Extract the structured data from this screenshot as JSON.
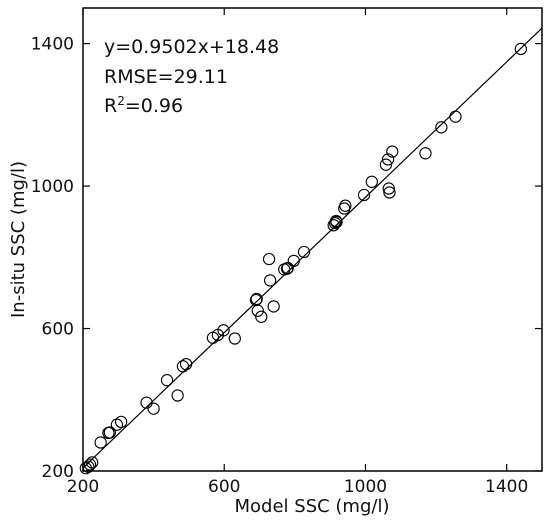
{
  "chart_data": {
    "type": "scatter",
    "xlabel": "Model SSC (mg/l)",
    "ylabel": "In-situ SSC (mg/l)",
    "xlim": [
      200,
      1500
    ],
    "ylim": [
      200,
      1500
    ],
    "xticks": [
      200,
      600,
      1000,
      1400
    ],
    "yticks": [
      200,
      600,
      1000,
      1400
    ],
    "xtick_labels": [
      "200",
      "600",
      "1000",
      "1400"
    ],
    "ytick_labels": [
      "200",
      "600",
      "1000",
      "1400"
    ],
    "grid": false,
    "annotations": [
      {
        "key": "equation",
        "text": "y=0.9502x+18.48"
      },
      {
        "key": "rmse",
        "text": "RMSE=29.11"
      },
      {
        "key": "r2_prefix",
        "text": "R"
      },
      {
        "key": "r2_sup",
        "text": "2"
      },
      {
        "key": "r2_value",
        "text": "=0.96"
      }
    ],
    "fit_line": {
      "slope": 0.9502,
      "intercept": 18.48,
      "x_range": [
        200,
        1500
      ]
    },
    "points": [
      [
        208,
        208
      ],
      [
        215,
        212
      ],
      [
        220,
        218
      ],
      [
        226,
        224
      ],
      [
        250,
        280
      ],
      [
        272,
        307
      ],
      [
        276,
        308
      ],
      [
        296,
        330
      ],
      [
        308,
        338
      ],
      [
        380,
        392
      ],
      [
        400,
        375
      ],
      [
        438,
        455
      ],
      [
        468,
        412
      ],
      [
        483,
        494
      ],
      [
        492,
        500
      ],
      [
        568,
        574
      ],
      [
        582,
        582
      ],
      [
        598,
        595
      ],
      [
        630,
        572
      ],
      [
        690,
        680
      ],
      [
        692,
        683
      ],
      [
        695,
        650
      ],
      [
        705,
        633
      ],
      [
        727,
        795
      ],
      [
        730,
        735
      ],
      [
        740,
        662
      ],
      [
        770,
        766
      ],
      [
        778,
        768
      ],
      [
        780,
        770
      ],
      [
        797,
        790
      ],
      [
        826,
        815
      ],
      [
        910,
        890
      ],
      [
        914,
        896
      ],
      [
        917,
        902
      ],
      [
        918,
        899
      ],
      [
        940,
        937
      ],
      [
        943,
        945
      ],
      [
        996,
        975
      ],
      [
        1018,
        1012
      ],
      [
        1058,
        1060
      ],
      [
        1064,
        1075
      ],
      [
        1066,
        993
      ],
      [
        1068,
        982
      ],
      [
        1076,
        1097
      ],
      [
        1170,
        1092
      ],
      [
        1215,
        1165
      ],
      [
        1255,
        1195
      ],
      [
        1440,
        1385
      ]
    ]
  }
}
